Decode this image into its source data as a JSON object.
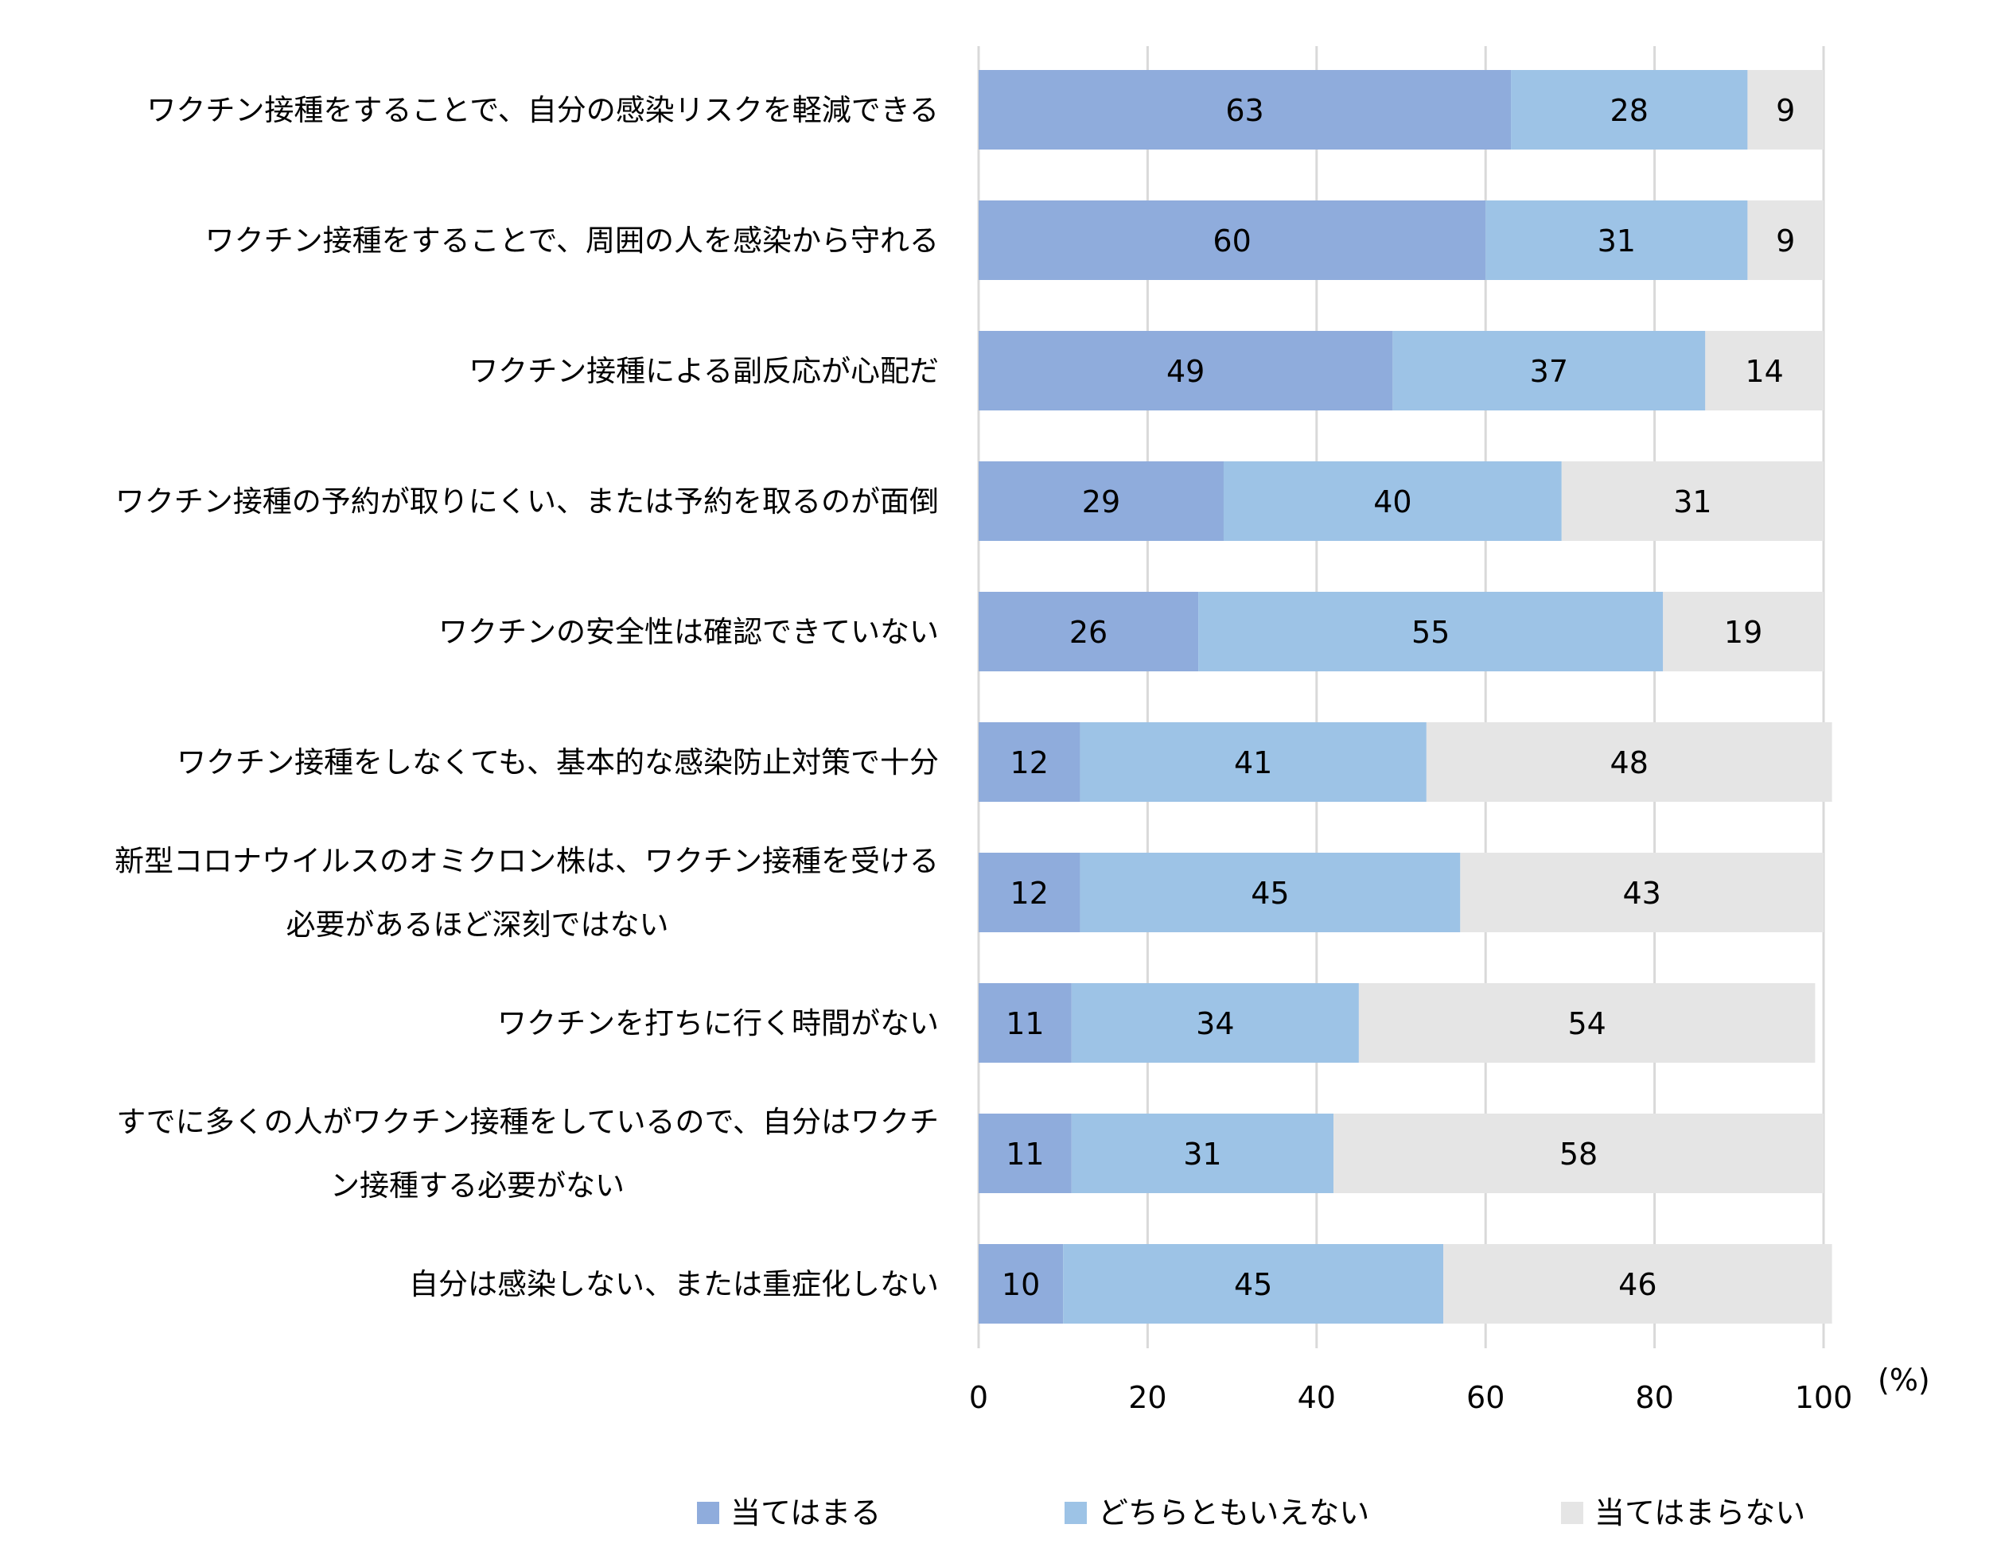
{
  "chart_data": {
    "type": "bar",
    "orientation": "horizontal",
    "stacked": true,
    "title": "",
    "xlabel": "",
    "ylabel": "",
    "unit_label": "(%)",
    "xlim": [
      0,
      100
    ],
    "xticks": [
      0,
      20,
      40,
      60,
      80,
      100
    ],
    "grid": true,
    "legend_position": "bottom",
    "categories": [
      [
        "ワクチン接種をすることで、自分の感染リスクを軽減できる"
      ],
      [
        "ワクチン接種をすることで、周囲の人を感染から守れる"
      ],
      [
        "ワクチン接種による副反応が心配だ"
      ],
      [
        "ワクチン接種の予約が取りにくい、または予約を取るのが面倒"
      ],
      [
        "ワクチンの安全性は確認できていない"
      ],
      [
        "ワクチン接種をしなくても、基本的な感染防止対策で十分"
      ],
      [
        "新型コロナウイルスのオミクロン株は、ワクチン接種を受ける",
        "必要があるほど深刻ではない"
      ],
      [
        "ワクチンを打ちに行く時間がない"
      ],
      [
        "すでに多くの人がワクチン接種をしているので、自分はワクチ",
        "ン接種する必要がない"
      ],
      [
        "自分は感染しない、または重症化しない"
      ]
    ],
    "series": [
      {
        "name": "当てはまる",
        "color": "#8FACDC",
        "values": [
          63,
          60,
          49,
          29,
          26,
          12,
          12,
          11,
          11,
          10
        ]
      },
      {
        "name": "どちらともいえない",
        "color": "#9DC3E6",
        "values": [
          28,
          31,
          37,
          40,
          55,
          41,
          45,
          34,
          31,
          45
        ]
      },
      {
        "name": "当てはまらない",
        "color": "#E5E5E5",
        "values": [
          9,
          9,
          14,
          31,
          19,
          48,
          43,
          54,
          58,
          46
        ]
      }
    ],
    "gridline_color": "#D9D9D9"
  }
}
